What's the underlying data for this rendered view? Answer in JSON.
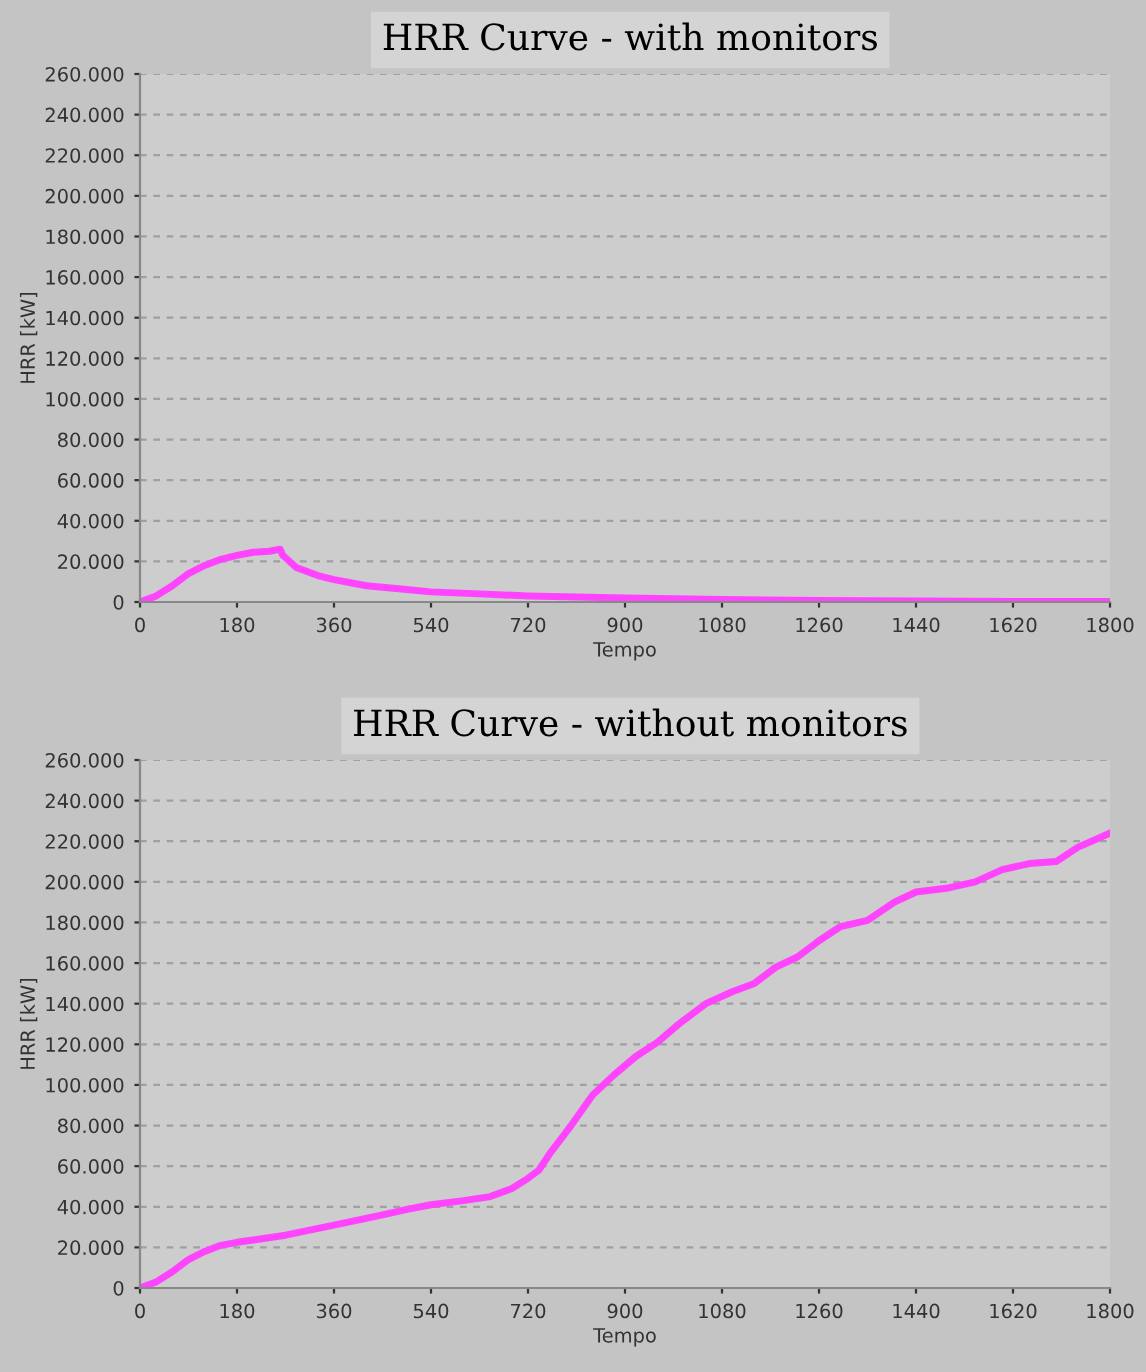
{
  "chart_data": [
    {
      "type": "line",
      "title": "HRR Curve - with monitors",
      "xlabel": "Tempo",
      "ylabel": "HRR [kW]",
      "grid": "y",
      "line_style": "solid",
      "marker": "none",
      "x": [
        0,
        30,
        60,
        90,
        120,
        150,
        180,
        210,
        240,
        260,
        265,
        290,
        330,
        360,
        420,
        480,
        540,
        630,
        720,
        810,
        900,
        1080,
        1260,
        1440,
        1620,
        1800
      ],
      "series": [
        {
          "color": "#ff44ff",
          "values": [
            0,
            3000,
            8000,
            14000,
            18000,
            21000,
            23000,
            24500,
            25000,
            26000,
            23000,
            17000,
            13000,
            11000,
            8000,
            6500,
            5000,
            4000,
            3000,
            2500,
            2000,
            1200,
            800,
            500,
            300,
            200
          ]
        }
      ],
      "xlim": [
        0,
        1800
      ],
      "xticks": [
        0,
        180,
        360,
        540,
        720,
        900,
        1080,
        1260,
        1440,
        1620,
        1800
      ],
      "ylim": [
        0,
        260000
      ],
      "yticks": [
        0,
        {
          "value": 20000,
          "label": "20.000"
        },
        {
          "value": 40000,
          "label": "40.000"
        },
        {
          "value": 60000,
          "label": "60.000"
        },
        {
          "value": 80000,
          "label": "80.000"
        },
        {
          "value": 100000,
          "label": "100.000"
        },
        {
          "value": 120000,
          "label": "120.000"
        },
        {
          "value": 140000,
          "label": "140.000"
        },
        {
          "value": 160000,
          "label": "160.000"
        },
        {
          "value": 180000,
          "label": "180.000"
        },
        {
          "value": 200000,
          "label": "200.000"
        },
        {
          "value": 220000,
          "label": "220.000"
        },
        {
          "value": 240000,
          "label": "240.000"
        },
        {
          "value": 260000,
          "label": "260.000"
        }
      ]
    },
    {
      "type": "line",
      "title": "HRR Curve - without monitors",
      "xlabel": "Tempo",
      "ylabel": "HRR [kW]",
      "grid": "y",
      "line_style": "solid",
      "marker": "none",
      "x": [
        0,
        30,
        60,
        90,
        120,
        150,
        180,
        220,
        270,
        360,
        450,
        500,
        540,
        600,
        650,
        690,
        720,
        740,
        760,
        800,
        840,
        880,
        920,
        960,
        1000,
        1050,
        1100,
        1140,
        1180,
        1220,
        1260,
        1300,
        1350,
        1400,
        1440,
        1500,
        1550,
        1600,
        1650,
        1700,
        1740,
        1800
      ],
      "series": [
        {
          "color": "#ff44ff",
          "values": [
            0,
            3000,
            8000,
            14000,
            18000,
            21000,
            22500,
            24000,
            26000,
            31000,
            36000,
            39000,
            41000,
            43000,
            45000,
            49000,
            54000,
            58000,
            66000,
            80000,
            95000,
            105000,
            114000,
            121000,
            130000,
            140000,
            146000,
            150000,
            158000,
            163000,
            171000,
            178000,
            181000,
            190000,
            195000,
            197000,
            200000,
            206000,
            209000,
            210000,
            217000,
            224000
          ]
        }
      ],
      "xlim": [
        0,
        1800
      ],
      "xticks": [
        0,
        180,
        360,
        540,
        720,
        900,
        1080,
        1260,
        1440,
        1620,
        1800
      ],
      "ylim": [
        0,
        260000
      ],
      "yticks": [
        0,
        {
          "value": 20000,
          "label": "20.000"
        },
        {
          "value": 40000,
          "label": "40.000"
        },
        {
          "value": 60000,
          "label": "60.000"
        },
        {
          "value": 80000,
          "label": "80.000"
        },
        {
          "value": 100000,
          "label": "100.000"
        },
        {
          "value": 120000,
          "label": "120.000"
        },
        {
          "value": 140000,
          "label": "140.000"
        },
        {
          "value": 160000,
          "label": "160.000"
        },
        {
          "value": 180000,
          "label": "180.000"
        },
        {
          "value": 200000,
          "label": "200.000"
        },
        {
          "value": 220000,
          "label": "220.000"
        },
        {
          "value": 240000,
          "label": "240.000"
        },
        {
          "value": 260000,
          "label": "260.000"
        }
      ]
    }
  ]
}
